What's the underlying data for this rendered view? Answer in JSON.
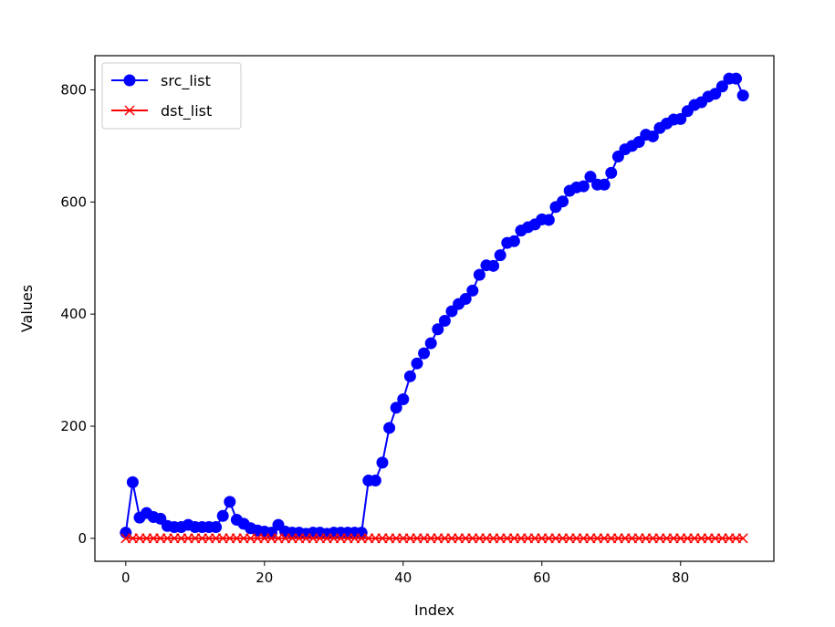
{
  "chart_data": {
    "type": "line",
    "title": "",
    "xlabel": "Index",
    "ylabel": "Values",
    "xlim": [
      -4.45,
      93.45
    ],
    "ylim": [
      -41,
      861
    ],
    "xticks": [
      0,
      20,
      40,
      60,
      80
    ],
    "yticks": [
      0,
      200,
      400,
      600,
      800
    ],
    "xtick_labels": [
      "0",
      "20",
      "40",
      "60",
      "80"
    ],
    "ytick_labels": [
      "0",
      "200",
      "400",
      "600",
      "800"
    ],
    "grid": false,
    "legend_position": "top-left",
    "series": [
      {
        "name": "src_list",
        "color": "#0000ff",
        "marker": "circle",
        "x": [
          0,
          1,
          2,
          3,
          4,
          5,
          6,
          7,
          8,
          9,
          10,
          11,
          12,
          13,
          14,
          15,
          16,
          17,
          18,
          19,
          20,
          21,
          22,
          23,
          24,
          25,
          26,
          27,
          28,
          29,
          30,
          31,
          32,
          33,
          34,
          35,
          36,
          37,
          38,
          39,
          40,
          41,
          42,
          43,
          44,
          45,
          46,
          47,
          48,
          49,
          50,
          51,
          52,
          53,
          54,
          55,
          56,
          57,
          58,
          59,
          60,
          61,
          62,
          63,
          64,
          65,
          66,
          67,
          68,
          69,
          70,
          71,
          72,
          73,
          74,
          75,
          76,
          77,
          78,
          79,
          80,
          81,
          82,
          83,
          84,
          85,
          86,
          87,
          88,
          89
        ],
        "values": [
          10,
          100,
          37,
          45,
          38,
          35,
          22,
          20,
          20,
          24,
          20,
          20,
          20,
          20,
          40,
          65,
          33,
          26,
          18,
          14,
          12,
          10,
          24,
          12,
          10,
          10,
          8,
          10,
          10,
          8,
          10,
          10,
          10,
          10,
          10,
          103,
          103,
          135,
          197,
          233,
          248,
          289,
          312,
          330,
          348,
          373,
          388,
          405,
          418,
          427,
          442,
          470,
          487,
          486,
          505,
          527,
          530,
          549,
          555,
          560,
          569,
          568,
          591,
          601,
          620,
          626,
          628,
          645,
          631,
          631,
          652,
          681,
          694,
          700,
          707,
          720,
          717,
          732,
          740,
          747,
          748,
          762,
          773,
          778,
          788,
          793,
          806,
          820,
          820,
          790
        ]
      },
      {
        "name": "dst_list",
        "color": "#ff0000",
        "marker": "x",
        "x": [
          0,
          1,
          2,
          3,
          4,
          5,
          6,
          7,
          8,
          9,
          10,
          11,
          12,
          13,
          14,
          15,
          16,
          17,
          18,
          19,
          20,
          21,
          22,
          23,
          24,
          25,
          26,
          27,
          28,
          29,
          30,
          31,
          32,
          33,
          34,
          35,
          36,
          37,
          38,
          39,
          40,
          41,
          42,
          43,
          44,
          45,
          46,
          47,
          48,
          49,
          50,
          51,
          52,
          53,
          54,
          55,
          56,
          57,
          58,
          59,
          60,
          61,
          62,
          63,
          64,
          65,
          66,
          67,
          68,
          69,
          70,
          71,
          72,
          73,
          74,
          75,
          76,
          77,
          78,
          79,
          80,
          81,
          82,
          83,
          84,
          85,
          86,
          87,
          88,
          89
        ],
        "values": [
          0,
          0,
          0,
          0,
          0,
          0,
          0,
          0,
          0,
          0,
          0,
          0,
          0,
          0,
          0,
          0,
          0,
          0,
          0,
          0,
          0,
          0,
          0,
          0,
          0,
          0,
          0,
          0,
          0,
          0,
          0,
          0,
          0,
          0,
          0,
          0,
          0,
          0,
          0,
          0,
          0,
          0,
          0,
          0,
          0,
          0,
          0,
          0,
          0,
          0,
          0,
          0,
          0,
          0,
          0,
          0,
          0,
          0,
          0,
          0,
          0,
          0,
          0,
          0,
          0,
          0,
          0,
          0,
          0,
          0,
          0,
          0,
          0,
          0,
          0,
          0,
          0,
          0,
          0,
          0,
          0,
          0,
          0,
          0,
          0,
          0,
          0,
          0,
          0,
          0
        ]
      }
    ]
  }
}
